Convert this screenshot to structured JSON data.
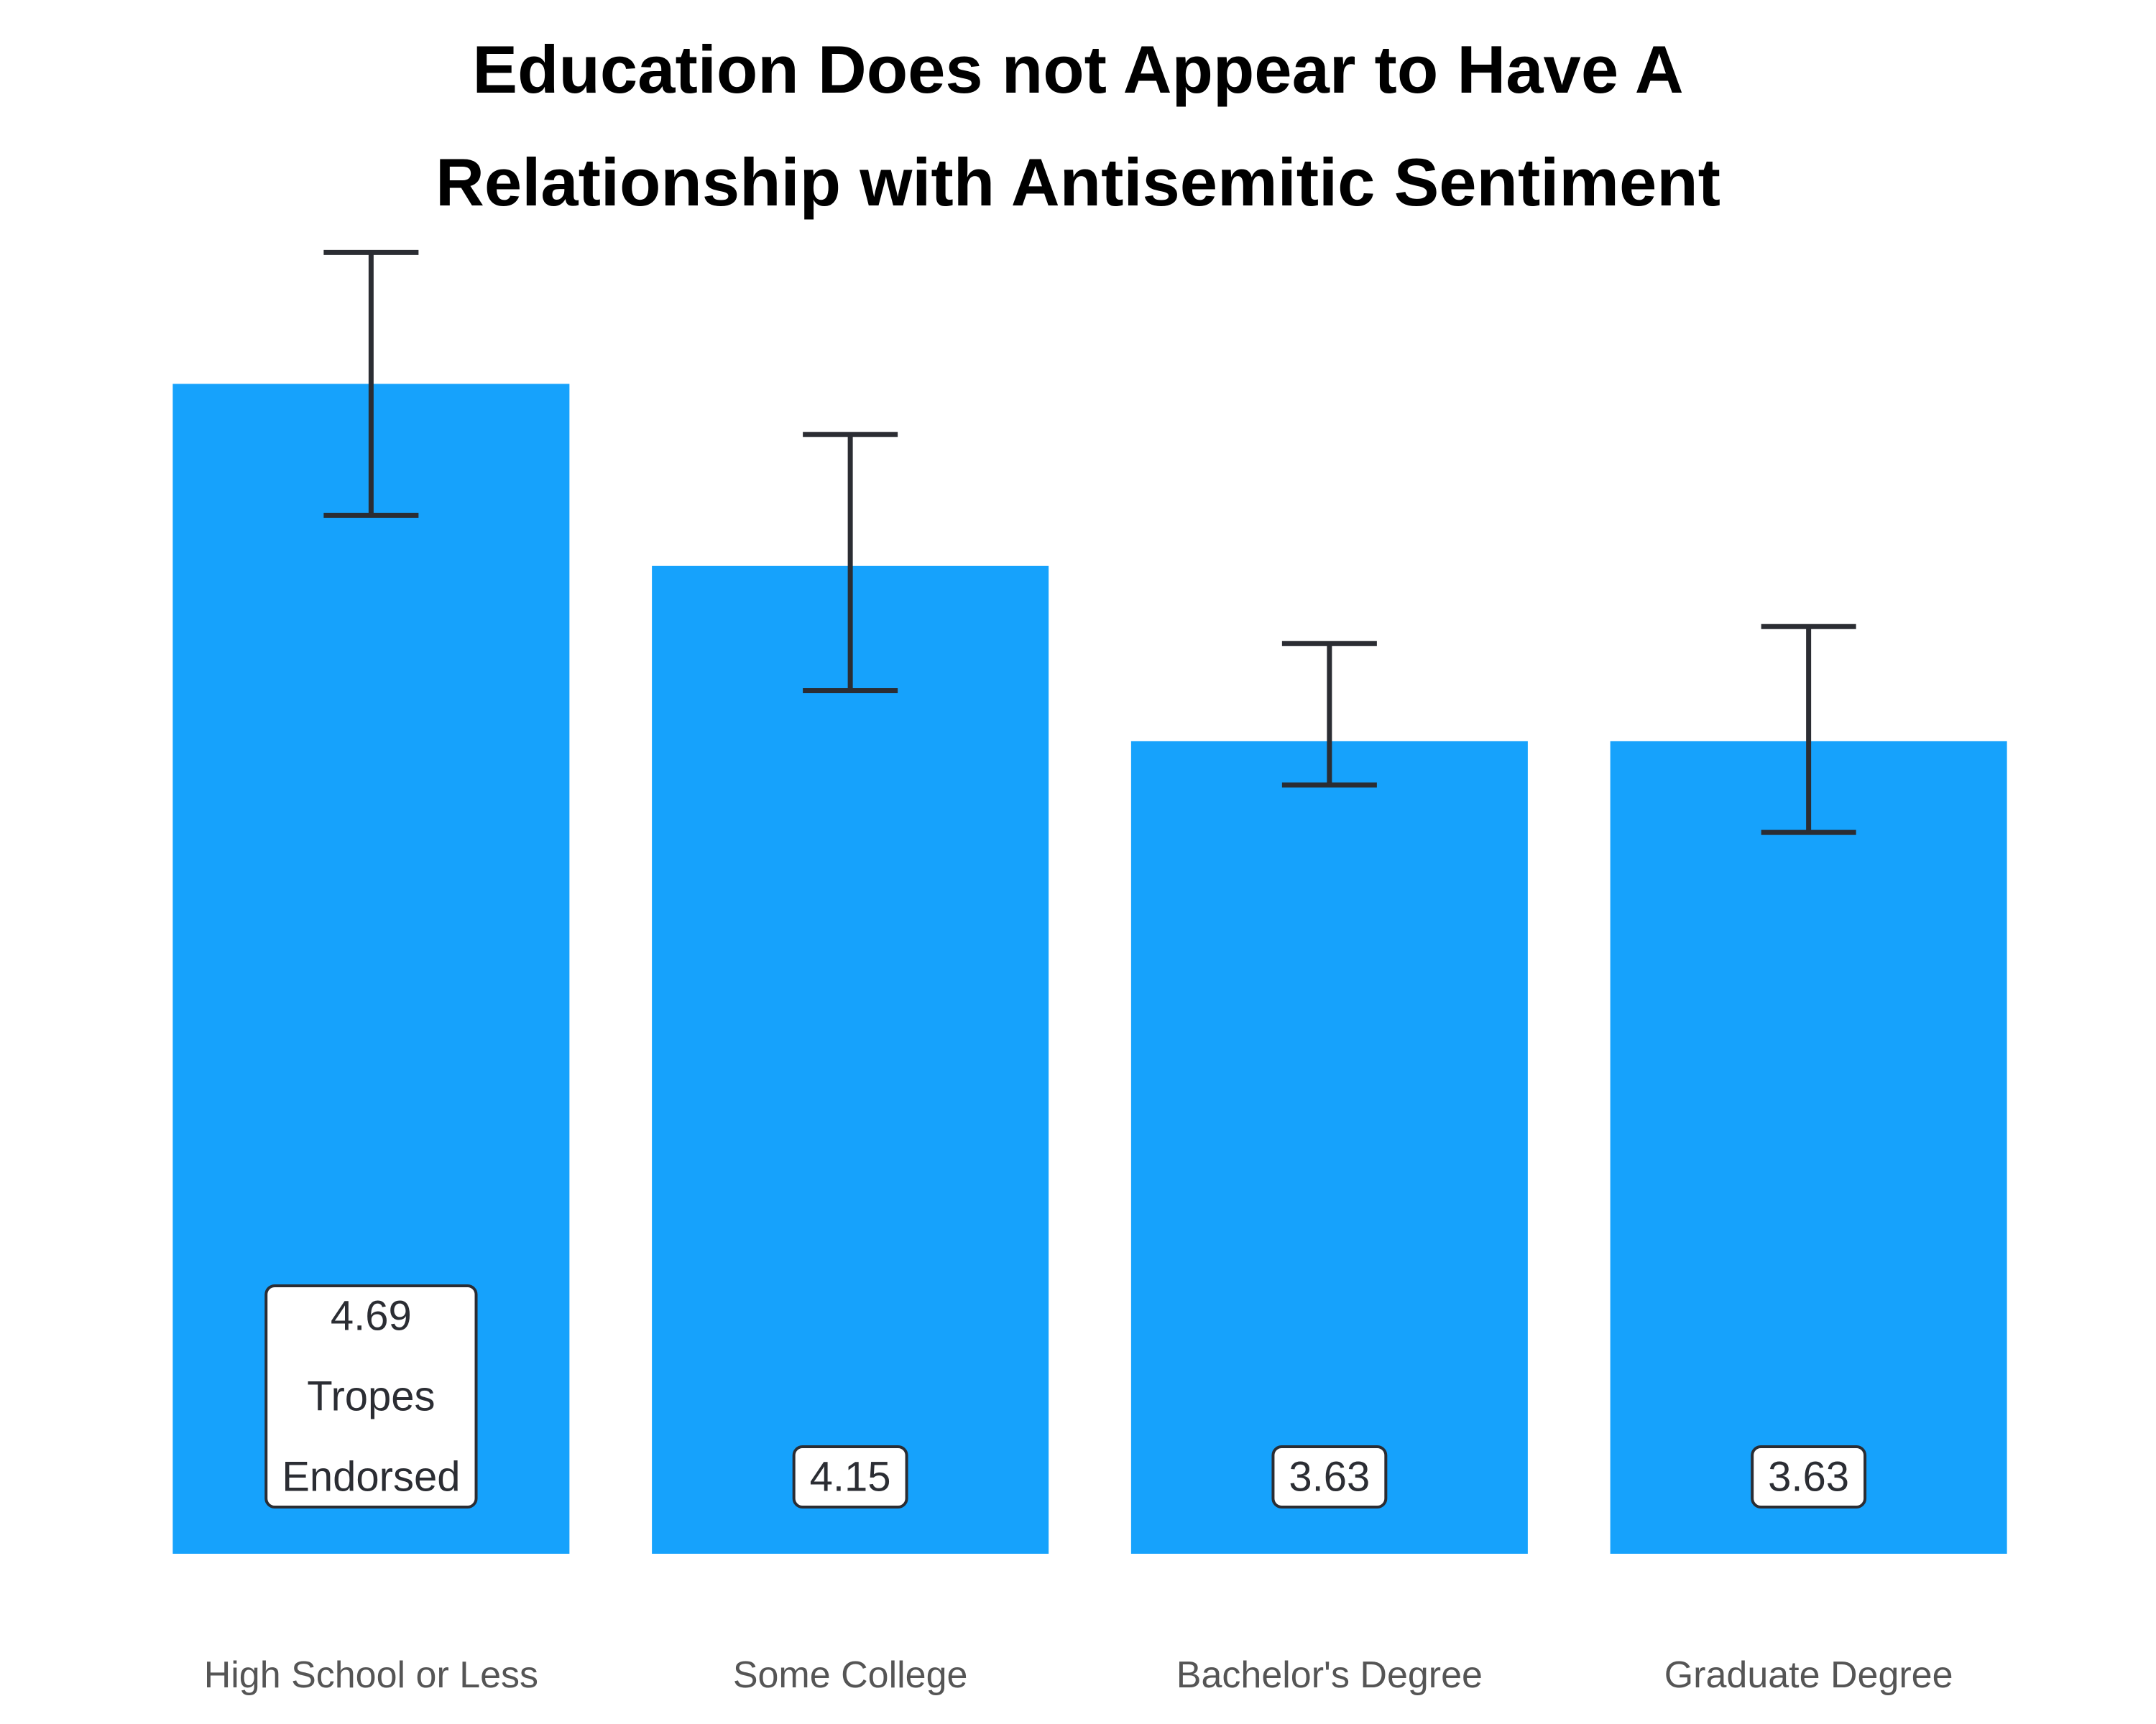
{
  "chart_data": {
    "type": "bar",
    "title_lines": [
      "Education Does not Appear to Have A",
      "Relationship with Antisemitic Sentiment"
    ],
    "categories": [
      "High School or Less",
      "Some College",
      "Bachelor's Degree",
      "Graduate Degree"
    ],
    "values": [
      4.69,
      4.15,
      3.63,
      3.63
    ],
    "value_labels": [
      [
        "4.69",
        "Tropes",
        "Endorsed"
      ],
      [
        "4.15"
      ],
      [
        "3.63"
      ],
      [
        "3.63"
      ]
    ],
    "error_bars": [
      {
        "low": 4.3,
        "high": 5.08
      },
      {
        "low": 3.78,
        "high": 4.54
      },
      {
        "low": 3.5,
        "high": 3.92
      },
      {
        "low": 3.36,
        "high": 3.97
      }
    ],
    "ylim": [
      1.22,
      5.2
    ],
    "grid": false,
    "legend": "none",
    "colors": {
      "bar": "#16a2fc",
      "error_bar": "#2b2d33",
      "label_box_border": "#2b2d33",
      "label_box_fill": "#ffffff",
      "category_text": "#555555",
      "value_text": "#2b2d33"
    }
  }
}
